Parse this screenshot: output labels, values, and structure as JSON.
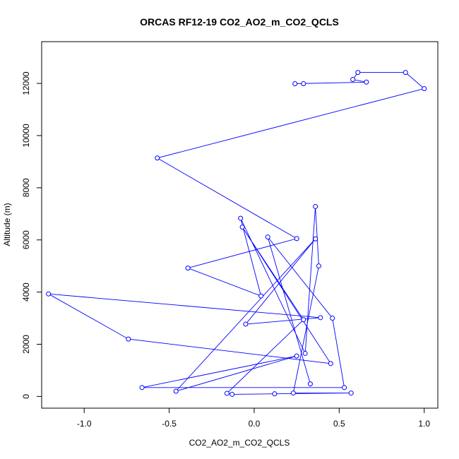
{
  "chart_data": {
    "type": "line",
    "title": "ORCAS RF12-19 CO2_AO2_m_CO2_QCLS",
    "xlabel": "CO2_AO2_m_CO2_QCLS",
    "ylabel": "Altitude (m)",
    "xlim": [
      -1.25,
      1.08
    ],
    "ylim": [
      -450,
      13600
    ],
    "x_ticks": [
      -1.0,
      -0.5,
      0.0,
      0.5,
      1.0
    ],
    "x_tick_labels": [
      "-1.0",
      "-0.5",
      "0.0",
      "0.5",
      "1.0"
    ],
    "y_ticks": [
      0,
      2000,
      4000,
      6000,
      8000,
      10000,
      12000
    ],
    "y_tick_labels": [
      "0",
      "2000",
      "4000",
      "6000",
      "8000",
      "10000",
      "12000"
    ],
    "grid": false,
    "line_color": "#0000ff",
    "marker": "open-circle",
    "series": [
      {
        "x": [
          0.29,
          0.24,
          0.66,
          0.58,
          0.61,
          0.89,
          1.0,
          -0.57,
          0.25,
          -0.39,
          0.04,
          -0.08,
          0.3,
          0.36,
          0.38,
          0.23,
          0.57,
          0.12,
          -0.13,
          -0.16,
          0.29,
          -0.07,
          0.45,
          -0.74,
          -1.21,
          0.39,
          -0.05,
          0.36,
          -0.46,
          0.25,
          -0.66,
          0.53,
          0.46,
          0.08,
          0.33
        ],
        "y": [
          11990,
          11990,
          12050,
          12150,
          12420,
          12420,
          11800,
          9140,
          6050,
          4920,
          3850,
          6830,
          1650,
          7280,
          5000,
          130,
          130,
          100,
          80,
          120,
          2940,
          6490,
          1260,
          2200,
          3930,
          3020,
          2770,
          6040,
          200,
          1550,
          340,
          340,
          3000,
          6110,
          480
        ]
      }
    ]
  }
}
